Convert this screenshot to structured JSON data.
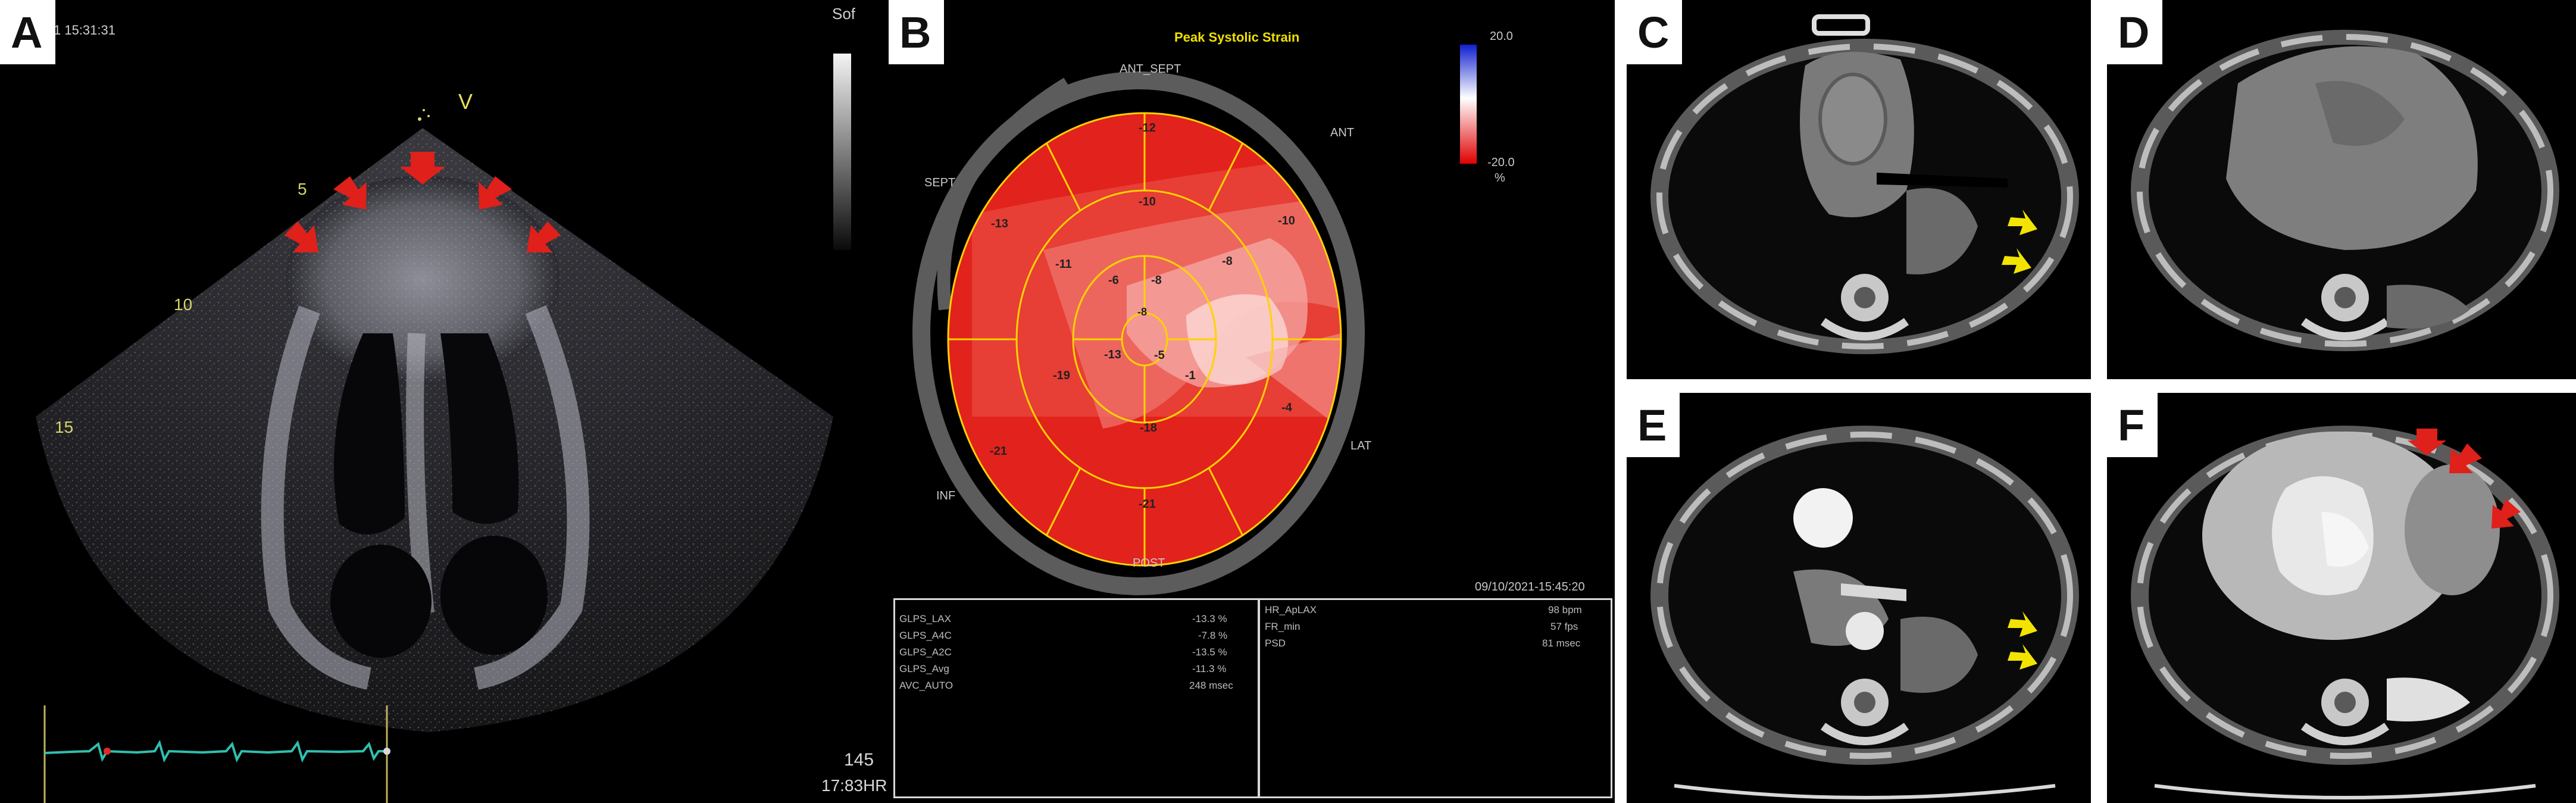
{
  "panels": {
    "a": {
      "label": "A",
      "timestamp": "1 15:31:31",
      "probe_marker": "V",
      "gain_label": "Sof",
      "depth_marks": [
        "5",
        "10",
        "15"
      ],
      "heart_rate": "145",
      "hr_text": "17:83HR"
    },
    "b": {
      "label": "B",
      "title": "Peak Systolic Strain",
      "scale_max": "20.0",
      "scale_min": "-20.0",
      "scale_unit": "%",
      "wall_labels": {
        "ant_sept": "ANT_SEPT",
        "ant": "ANT",
        "sept": "SEPT",
        "inf": "INF",
        "lat": "LAT",
        "post": "POST"
      },
      "segment_values": [
        "-12",
        "-10",
        "-13",
        "-10",
        "-11",
        "-6",
        "-8",
        "-8",
        "-8",
        "-13",
        "-5",
        "-1",
        "-19",
        "-21",
        "-4",
        "-18",
        "-21"
      ],
      "datetime": "09/10/2021-15:45:20",
      "table_left": [
        {
          "k": "GLPS_LAX",
          "v": "-13.3 %"
        },
        {
          "k": "GLPS_A4C",
          "v": "-7.8 %"
        },
        {
          "k": "GLPS_A2C",
          "v": "-13.5 %"
        },
        {
          "k": "GLPS_Avg",
          "v": "-11.3 %"
        },
        {
          "k": "AVC_AUTO",
          "v": "248 msec"
        }
      ],
      "table_right": [
        {
          "k": "HR_ApLAX",
          "v": "98 bpm"
        },
        {
          "k": "FR_min",
          "v": "57 fps"
        },
        {
          "k": "PSD",
          "v": "81 msec"
        }
      ]
    },
    "c": {
      "label": "C"
    },
    "d": {
      "label": "D"
    },
    "e": {
      "label": "E"
    },
    "f": {
      "label": "F"
    }
  },
  "colors": {
    "arrow_red": "#e0201a",
    "arrow_yellow": "#f2e400",
    "bullseye_red": "#e2221c",
    "grid_yellow": "#ffd200",
    "ecg_teal": "#2fc0b0"
  }
}
